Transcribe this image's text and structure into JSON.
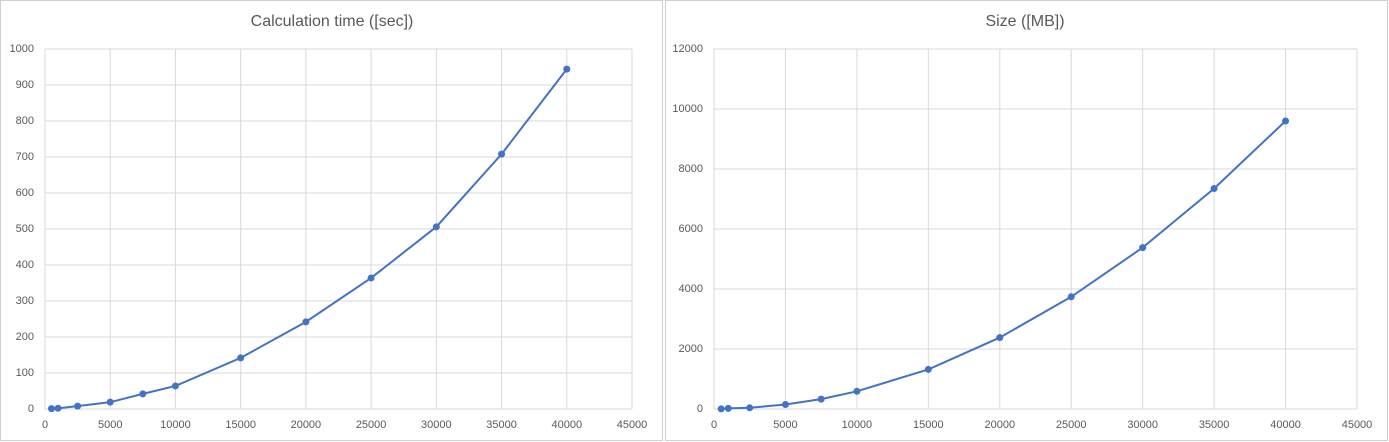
{
  "chart_data": [
    {
      "type": "line",
      "title": "Calculation time ([sec])",
      "x": [
        500,
        1000,
        2500,
        5000,
        7500,
        10000,
        15000,
        20000,
        25000,
        30000,
        35000,
        40000
      ],
      "values": [
        1,
        2,
        8,
        19,
        42,
        64,
        142,
        242,
        364,
        506,
        708,
        944
      ],
      "color": "#4472c4",
      "xlim": [
        0,
        45000
      ],
      "xticks": [
        0,
        5000,
        10000,
        15000,
        20000,
        25000,
        30000,
        35000,
        40000,
        45000
      ],
      "ylim": [
        0,
        1000
      ],
      "yticks": [
        0,
        100,
        200,
        300,
        400,
        500,
        600,
        700,
        800,
        900,
        1000
      ],
      "grid": true
    },
    {
      "type": "line",
      "title": "Size ([MB])",
      "x": [
        500,
        1000,
        2500,
        5000,
        7500,
        10000,
        15000,
        20000,
        25000,
        30000,
        35000,
        40000
      ],
      "values": [
        5,
        20,
        40,
        150,
        330,
        590,
        1320,
        2380,
        3740,
        5380,
        7350,
        9600
      ],
      "color": "#4472c4",
      "xlim": [
        0,
        45000
      ],
      "xticks": [
        0,
        5000,
        10000,
        15000,
        20000,
        25000,
        30000,
        35000,
        40000,
        45000
      ],
      "ylim": [
        0,
        12000
      ],
      "yticks": [
        0,
        2000,
        4000,
        6000,
        8000,
        10000,
        12000
      ],
      "grid": true
    }
  ]
}
